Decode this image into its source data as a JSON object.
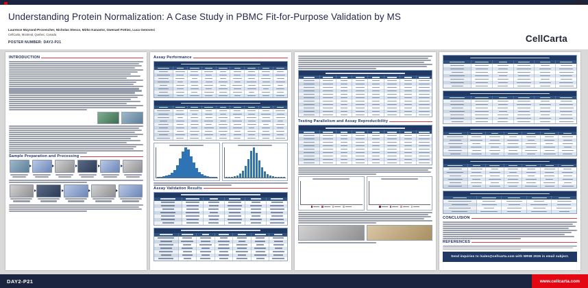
{
  "colors": {
    "navy": "#1b2540",
    "table_navy": "#1f3864",
    "red": "#e30613",
    "panel": "#ffffff",
    "background": "#d9d9d9",
    "hist_blue": "#2e74b5"
  },
  "header": {
    "title": "Understanding Protein Normalization: A Case Study in PBMC Fit-for-Purpose Validation by MS",
    "authors": "Laurence Mayrand-Provencher, Nicholas Stesco, Mirko Kanastor, Gwenael Pottiez, Luca Genovesi",
    "affiliation": "CellCarta, Montreal, Quebec, Canada",
    "poster_label": "POSTER NUMBER: DAY2-P21",
    "brand": "CellCarta"
  },
  "sections": {
    "introduction": {
      "title": "INTRODUCTION"
    },
    "sample_prep": {
      "title": "Sample Preparation and Processing"
    },
    "assay_performance": {
      "title": "Assay Performance"
    },
    "validation": {
      "title": "Assay Validation Results"
    },
    "parallelism": {
      "title": "Testing Parallelism and Assay Reproducibility"
    },
    "conclusion": {
      "title": "CONCLUSION"
    },
    "references": {
      "title": "REFERENCES"
    }
  },
  "banner": {
    "text": "Send inquiries to /sales@cellcarta.com with WRIB 2026 in email subject."
  },
  "footer": {
    "left": "DAY2-P21",
    "right": "www.cellcarta.com"
  },
  "tables": {
    "col2_t1": {
      "c": 9,
      "r": 8
    },
    "col2_t2": {
      "c": 9,
      "r": 9
    },
    "col2_t3": {
      "c": 6,
      "r": 7
    },
    "col2_t4": {
      "c": 7,
      "r": 7
    },
    "col3_t1": {
      "c": 8,
      "r": 11
    },
    "col3_t2": {
      "c": 8,
      "r": 9
    },
    "col4_t1": {
      "c": 6,
      "r": 7
    },
    "col4_t2": {
      "c": 6,
      "r": 7
    },
    "col4_t3": {
      "c": 7,
      "r": 6
    },
    "col4_t4": {
      "c": 7,
      "r": 6
    },
    "col4_t5": {
      "c": 5,
      "r": 4
    }
  },
  "charts": {
    "hist1": {
      "type": "histogram",
      "color": "#2e74b5",
      "values": [
        1,
        2,
        3,
        5,
        8,
        14,
        24,
        40,
        62,
        85,
        100,
        92,
        70,
        48,
        30,
        18,
        10,
        6,
        3,
        2,
        1,
        1
      ]
    },
    "hist2": {
      "type": "histogram",
      "color": "#2e74b5",
      "values": [
        1,
        1,
        2,
        4,
        7,
        12,
        22,
        38,
        60,
        88,
        100,
        80,
        55,
        34,
        20,
        11,
        6,
        3,
        2,
        1,
        1,
        1
      ]
    },
    "bars1": {
      "type": "grouped-bar",
      "colors": [
        "#7e2230",
        "#b25563",
        "#d79aa4",
        "#b9b9b9"
      ],
      "groups": [
        [
          95,
          78,
          88,
          70
        ],
        [
          90,
          82,
          76,
          68
        ],
        [
          98,
          85,
          90,
          74
        ],
        [
          88,
          76,
          82,
          64
        ]
      ]
    },
    "bars2": {
      "type": "grouped-bar",
      "colors": [
        "#7e2230",
        "#b25563",
        "#d79aa4",
        "#b9b9b9"
      ],
      "groups": [
        [
          85,
          92,
          70,
          60
        ],
        [
          78,
          88,
          64,
          55
        ],
        [
          90,
          95,
          75,
          66
        ],
        [
          82,
          86,
          68,
          58
        ]
      ]
    }
  },
  "workflow": {
    "row1_steps": 6,
    "row2_steps": 5
  }
}
